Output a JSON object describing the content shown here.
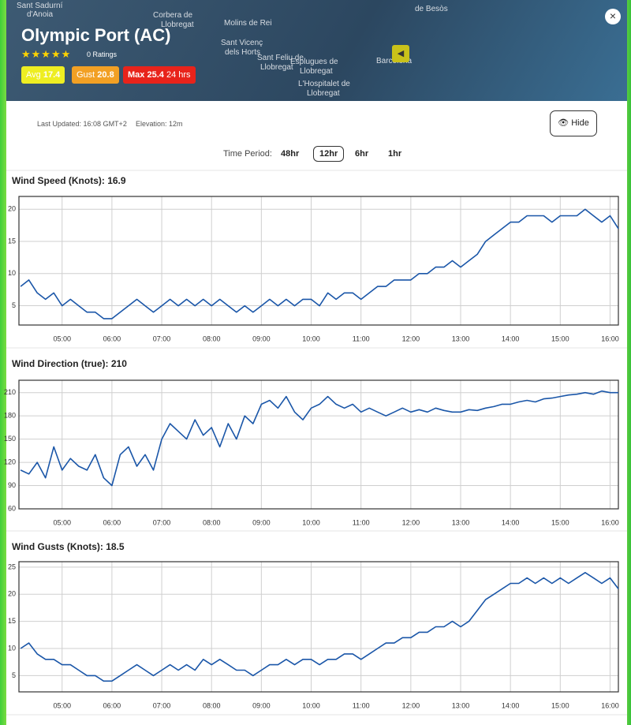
{
  "header": {
    "title": "Olympic Port (AC)",
    "ratings": "0 Ratings",
    "badges": [
      {
        "label": "Avg",
        "value": 17.4
      },
      {
        "label": "Gust",
        "value": 20.8
      },
      {
        "label": "Max",
        "value": 25.4,
        "note": "24 hrs"
      }
    ]
  },
  "map": {
    "labels": [
      "Sant Sadurní",
      "d'Anoia",
      "Corbera de",
      "Llobregat",
      "Molins de Rei",
      "Sant Vicenç",
      "dels Horts",
      "Sant Feliu de",
      "Llobregat",
      "Esplugues de",
      "Llobregat",
      "L'Hospitalet de",
      "Llobregat",
      "Barcelona",
      "de Besòs"
    ]
  },
  "info": {
    "updated": "Last Updated: 16:08 GMT+2",
    "elevation": "Elevation: 12m",
    "hide": "Hide",
    "period_label": "Time Period:",
    "periods": [
      "48hr",
      "12hr",
      "6hr",
      "1hr"
    ]
  },
  "chart_data": [
    {
      "type": "line",
      "title": "Wind Speed (Knots): 16.9",
      "color": "#1a56a8",
      "grid": true,
      "x": [
        "04:10",
        "04:20",
        "04:30",
        "04:40",
        "04:50",
        "05:00",
        "05:10",
        "05:20",
        "05:30",
        "05:40",
        "05:50",
        "06:00",
        "06:10",
        "06:20",
        "06:30",
        "06:40",
        "06:50",
        "07:00",
        "07:10",
        "07:20",
        "07:30",
        "07:40",
        "07:50",
        "08:00",
        "08:10",
        "08:20",
        "08:30",
        "08:40",
        "08:50",
        "09:00",
        "09:10",
        "09:20",
        "09:30",
        "09:40",
        "09:50",
        "10:00",
        "10:10",
        "10:20",
        "10:30",
        "10:40",
        "10:50",
        "11:00",
        "11:10",
        "11:20",
        "11:30",
        "11:40",
        "11:50",
        "12:00",
        "12:10",
        "12:20",
        "12:30",
        "12:40",
        "12:50",
        "13:00",
        "13:10",
        "13:20",
        "13:30",
        "13:40",
        "13:50",
        "14:00",
        "14:10",
        "14:20",
        "14:30",
        "14:40",
        "14:50",
        "15:00",
        "15:10",
        "15:20",
        "15:30",
        "15:40",
        "15:50",
        "16:00",
        "16:10"
      ],
      "values": [
        8,
        9,
        7,
        6,
        7,
        5,
        6,
        5,
        4,
        4,
        3,
        3,
        4,
        5,
        6,
        5,
        4,
        5,
        6,
        5,
        6,
        5,
        6,
        5,
        6,
        5,
        4,
        5,
        4,
        5,
        6,
        5,
        6,
        5,
        6,
        6,
        5,
        7,
        6,
        7,
        7,
        6,
        7,
        8,
        8,
        9,
        9,
        9,
        10,
        10,
        11,
        11,
        12,
        11,
        12,
        13,
        15,
        16,
        17,
        18,
        18,
        19,
        19,
        19,
        18,
        19,
        19,
        19,
        20,
        19,
        18,
        19,
        17
      ],
      "xlim": [
        "04:08",
        "16:10"
      ],
      "xticks": [
        "05:00",
        "06:00",
        "07:00",
        "08:00",
        "09:00",
        "10:00",
        "11:00",
        "12:00",
        "13:00",
        "14:00",
        "15:00",
        "16:00"
      ],
      "ylim": [
        2,
        22
      ],
      "yticks": [
        5,
        10,
        15,
        20
      ]
    },
    {
      "type": "line",
      "title": "Wind Direction (true): 210",
      "color": "#1a56a8",
      "grid": true,
      "x": [
        "04:10",
        "04:20",
        "04:30",
        "04:40",
        "04:50",
        "05:00",
        "05:10",
        "05:20",
        "05:30",
        "05:40",
        "05:50",
        "06:00",
        "06:10",
        "06:20",
        "06:30",
        "06:40",
        "06:50",
        "07:00",
        "07:10",
        "07:20",
        "07:30",
        "07:40",
        "07:50",
        "08:00",
        "08:10",
        "08:20",
        "08:30",
        "08:40",
        "08:50",
        "09:00",
        "09:10",
        "09:20",
        "09:30",
        "09:40",
        "09:50",
        "10:00",
        "10:10",
        "10:20",
        "10:30",
        "10:40",
        "10:50",
        "11:00",
        "11:10",
        "11:20",
        "11:30",
        "11:40",
        "11:50",
        "12:00",
        "12:10",
        "12:20",
        "12:30",
        "12:40",
        "12:50",
        "13:00",
        "13:10",
        "13:20",
        "13:30",
        "13:40",
        "13:50",
        "14:00",
        "14:10",
        "14:20",
        "14:30",
        "14:40",
        "14:50",
        "15:00",
        "15:10",
        "15:20",
        "15:30",
        "15:40",
        "15:50",
        "16:00",
        "16:10"
      ],
      "values": [
        110,
        105,
        120,
        100,
        140,
        110,
        125,
        115,
        110,
        130,
        100,
        90,
        130,
        140,
        115,
        130,
        110,
        150,
        170,
        160,
        150,
        175,
        155,
        165,
        140,
        170,
        150,
        180,
        170,
        195,
        200,
        190,
        205,
        185,
        175,
        190,
        195,
        205,
        195,
        190,
        195,
        185,
        190,
        185,
        180,
        185,
        190,
        185,
        188,
        185,
        190,
        187,
        185,
        185,
        188,
        187,
        190,
        192,
        195,
        195,
        198,
        200,
        198,
        202,
        203,
        205,
        207,
        208,
        210,
        208,
        212,
        210,
        210
      ],
      "xlim": [
        "04:08",
        "16:10"
      ],
      "xticks": [
        "05:00",
        "06:00",
        "07:00",
        "08:00",
        "09:00",
        "10:00",
        "11:00",
        "12:00",
        "13:00",
        "14:00",
        "15:00",
        "16:00"
      ],
      "ylim": [
        60,
        226
      ],
      "yticks": [
        60,
        90,
        120,
        150,
        180,
        210
      ]
    },
    {
      "type": "line",
      "title": "Wind Gusts (Knots): 18.5",
      "color": "#1a56a8",
      "grid": true,
      "x": [
        "04:10",
        "04:20",
        "04:30",
        "04:40",
        "04:50",
        "05:00",
        "05:10",
        "05:20",
        "05:30",
        "05:40",
        "05:50",
        "06:00",
        "06:10",
        "06:20",
        "06:30",
        "06:40",
        "06:50",
        "07:00",
        "07:10",
        "07:20",
        "07:30",
        "07:40",
        "07:50",
        "08:00",
        "08:10",
        "08:20",
        "08:30",
        "08:40",
        "08:50",
        "09:00",
        "09:10",
        "09:20",
        "09:30",
        "09:40",
        "09:50",
        "10:00",
        "10:10",
        "10:20",
        "10:30",
        "10:40",
        "10:50",
        "11:00",
        "11:10",
        "11:20",
        "11:30",
        "11:40",
        "11:50",
        "12:00",
        "12:10",
        "12:20",
        "12:30",
        "12:40",
        "12:50",
        "13:00",
        "13:10",
        "13:20",
        "13:30",
        "13:40",
        "13:50",
        "14:00",
        "14:10",
        "14:20",
        "14:30",
        "14:40",
        "14:50",
        "15:00",
        "15:10",
        "15:20",
        "15:30",
        "15:40",
        "15:50",
        "16:00",
        "16:10"
      ],
      "values": [
        10,
        11,
        9,
        8,
        8,
        7,
        7,
        6,
        5,
        5,
        4,
        4,
        5,
        6,
        7,
        6,
        5,
        6,
        7,
        6,
        7,
        6,
        8,
        7,
        8,
        7,
        6,
        6,
        5,
        6,
        7,
        7,
        8,
        7,
        8,
        8,
        7,
        8,
        8,
        9,
        9,
        8,
        9,
        10,
        11,
        11,
        12,
        12,
        13,
        13,
        14,
        14,
        15,
        14,
        15,
        17,
        19,
        20,
        21,
        22,
        22,
        23,
        22,
        23,
        22,
        23,
        22,
        23,
        24,
        23,
        22,
        23,
        21
      ],
      "xlim": [
        "04:08",
        "16:10"
      ],
      "xticks": [
        "05:00",
        "06:00",
        "07:00",
        "08:00",
        "09:00",
        "10:00",
        "11:00",
        "12:00",
        "13:00",
        "14:00",
        "15:00",
        "16:00"
      ],
      "ylim": [
        2,
        26
      ],
      "yticks": [
        5,
        10,
        15,
        20,
        25
      ]
    }
  ]
}
